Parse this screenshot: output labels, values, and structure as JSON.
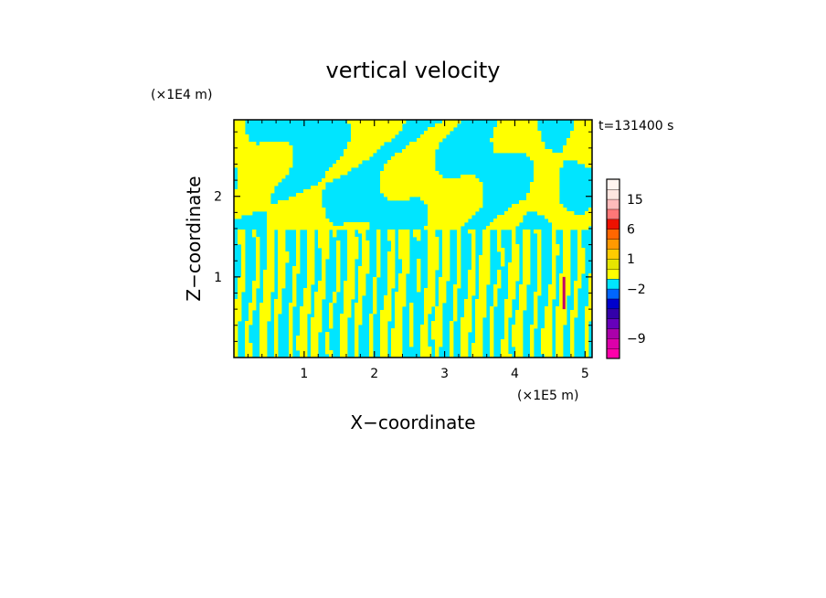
{
  "chart_data": {
    "type": "heatmap",
    "title": "vertical velocity",
    "time_label": "t=131400 s",
    "xlabel": "X−coordinate",
    "ylabel": "Z−coordinate",
    "x_scale_label": "(×1E5 m)",
    "y_scale_label": "(×1E4 m)",
    "xlim": [
      0,
      5.1
    ],
    "ylim": [
      0,
      2.95
    ],
    "x_ticks": [
      {
        "value": 1,
        "label": "1"
      },
      {
        "value": 2,
        "label": "2"
      },
      {
        "value": 3,
        "label": "3"
      },
      {
        "value": 4,
        "label": "4"
      },
      {
        "value": 5,
        "label": "5"
      }
    ],
    "y_ticks": [
      {
        "value": 1,
        "label": "1"
      },
      {
        "value": 2,
        "label": "2"
      }
    ],
    "field_colors": {
      "negative": "#00e5ff",
      "positive": "#ffff00"
    },
    "colorbar": {
      "levels": [
        -12,
        -10.5,
        -9,
        -7.5,
        -6,
        -4.5,
        -3,
        -2,
        -1,
        0,
        1,
        2,
        3,
        6,
        9,
        12,
        15,
        18,
        22
      ],
      "colors": [
        "#ff00aa",
        "#dd00aa",
        "#aa00aa",
        "#6600bb",
        "#3300aa",
        "#0000cc",
        "#0066ff",
        "#00e5ff",
        "#ffff00",
        "#e6e600",
        "#ffcc00",
        "#ff9900",
        "#ff6600",
        "#ee1100",
        "#ff7777",
        "#ffbbbb",
        "#ffe6e0",
        "#fff4f0"
      ],
      "labels": [
        {
          "value": 15,
          "label": "15"
        },
        {
          "value": 6,
          "label": "6"
        },
        {
          "value": 1,
          "label": "1"
        },
        {
          "value": -2,
          "label": "−2"
        },
        {
          "value": -9,
          "label": "−9"
        }
      ]
    }
  }
}
